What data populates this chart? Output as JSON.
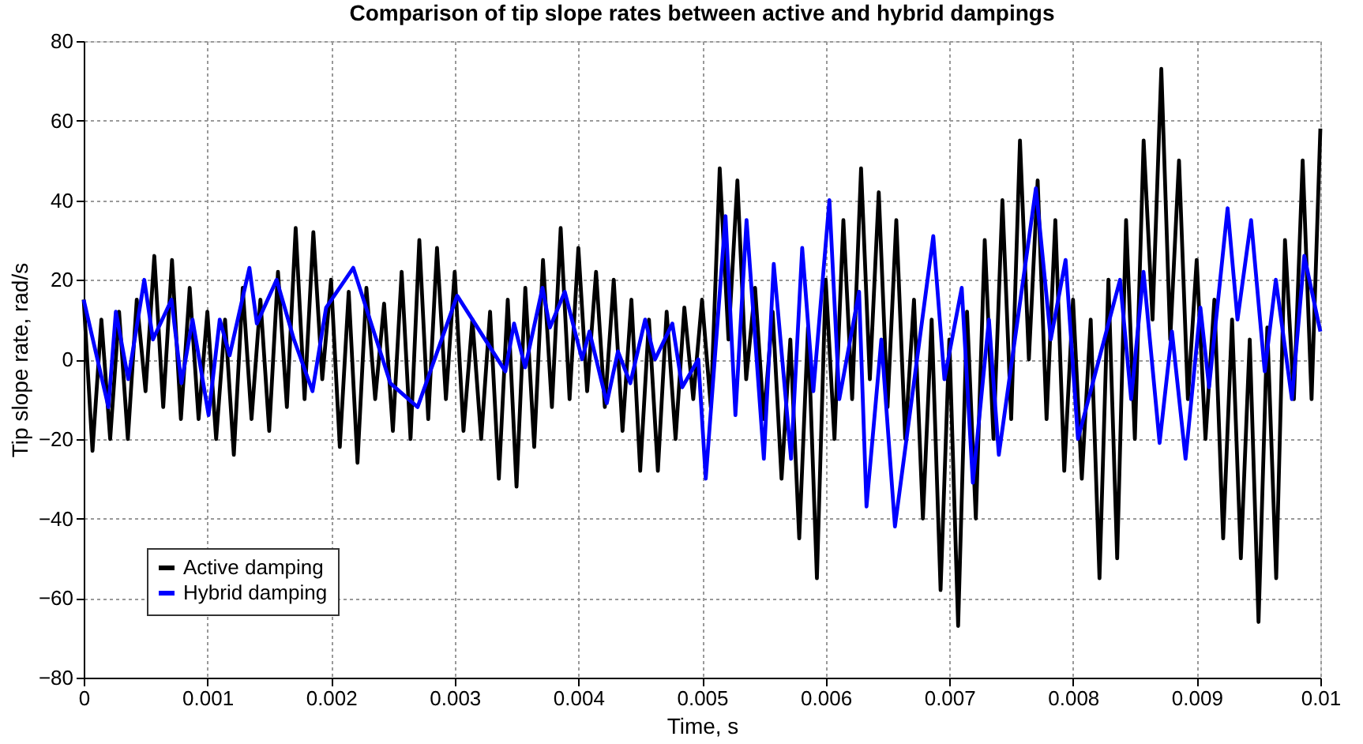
{
  "chart_data": {
    "type": "line",
    "title": "Comparison of tip slope rates between active and hybrid dampings",
    "xlabel": "Time, s",
    "ylabel": "Tip slope rate, rad/s",
    "xlim": [
      0,
      0.01
    ],
    "xticks": [
      0,
      0.001,
      0.002,
      0.003,
      0.004,
      0.005,
      0.006,
      0.007,
      0.008,
      0.009,
      0.01
    ],
    "ylim": [
      -80,
      80
    ],
    "yticks": [
      -80,
      -60,
      -40,
      -20,
      0,
      20,
      40,
      60,
      80
    ],
    "grid": true,
    "legend": "bottom left",
    "line_style": "solid",
    "marker": "none",
    "series": [
      {
        "name": "Active damping",
        "color": "#000000",
        "x": [
          0,
          7.1e-05,
          0.000143,
          0.000214,
          0.000286,
          0.000357,
          0.000429,
          0.0005,
          0.000571,
          0.000643,
          0.000714,
          0.000786,
          0.000857,
          0.000929,
          0.001,
          0.001071,
          0.001143,
          0.001214,
          0.001286,
          0.001357,
          0.001429,
          0.0015,
          0.001571,
          0.001643,
          0.001714,
          0.001786,
          0.001857,
          0.001929,
          0.002,
          0.002071,
          0.002143,
          0.002214,
          0.002286,
          0.002357,
          0.002429,
          0.0025,
          0.002571,
          0.002643,
          0.002714,
          0.002786,
          0.002857,
          0.002929,
          0.003,
          0.003071,
          0.003143,
          0.003214,
          0.003286,
          0.003357,
          0.003429,
          0.0035,
          0.003571,
          0.003643,
          0.003714,
          0.003786,
          0.003857,
          0.003929,
          0.004,
          0.004071,
          0.004143,
          0.004214,
          0.004286,
          0.004357,
          0.004429,
          0.0045,
          0.004571,
          0.004643,
          0.004714,
          0.004786,
          0.004857,
          0.004929,
          0.005,
          0.005071,
          0.005143,
          0.005214,
          0.005286,
          0.005357,
          0.005429,
          0.0055,
          0.005571,
          0.005643,
          0.005714,
          0.005786,
          0.005857,
          0.005929,
          0.006,
          0.006071,
          0.006143,
          0.006214,
          0.006286,
          0.006357,
          0.006429,
          0.0065,
          0.006571,
          0.006643,
          0.006714,
          0.006786,
          0.006857,
          0.006929,
          0.007,
          0.007071,
          0.007143,
          0.007214,
          0.007286,
          0.007357,
          0.007429,
          0.0075,
          0.007571,
          0.007643,
          0.007714,
          0.007786,
          0.007857,
          0.007929,
          0.008,
          0.008071,
          0.008143,
          0.008214,
          0.008286,
          0.008357,
          0.008429,
          0.0085,
          0.008571,
          0.008643,
          0.008714,
          0.008786,
          0.008857,
          0.008929,
          0.009,
          0.009071,
          0.009143,
          0.009214,
          0.009286,
          0.009357,
          0.009429,
          0.0095,
          0.009571,
          0.009643,
          0.009714,
          0.009786,
          0.009857,
          0.009929,
          0.01
        ],
        "values": [
          15,
          -23,
          10,
          -20,
          12,
          -20,
          15,
          -8,
          26,
          -12,
          25,
          -15,
          18,
          -15,
          12,
          -20,
          10,
          -24,
          18,
          -15,
          15,
          -18,
          22,
          -12,
          33,
          -10,
          32,
          -5,
          20,
          -22,
          17,
          -26,
          18,
          -10,
          14,
          -18,
          22,
          -20,
          30,
          -15,
          28,
          -10,
          22,
          -18,
          10,
          -20,
          12,
          -30,
          15,
          -32,
          18,
          -22,
          25,
          -12,
          33,
          -10,
          28,
          -8,
          22,
          -12,
          20,
          -18,
          15,
          -28,
          10,
          -28,
          12,
          -20,
          13,
          -10,
          15,
          -12,
          48,
          5,
          45,
          -5,
          18,
          -15,
          12,
          -30,
          5,
          -45,
          8,
          -55,
          20,
          -20,
          35,
          -10,
          48,
          -5,
          42,
          -12,
          35,
          -20,
          15,
          -40,
          10,
          -58,
          5,
          -67,
          12,
          -40,
          30,
          -20,
          40,
          -15,
          55,
          0,
          45,
          -15,
          35,
          -28,
          15,
          -30,
          10,
          -55,
          20,
          -50,
          35,
          -20,
          55,
          10,
          73,
          5,
          50,
          -10,
          25,
          -20,
          15,
          -45,
          10,
          -50,
          5,
          -66,
          8,
          -55,
          30,
          -10,
          50,
          -10,
          58
        ]
      },
      {
        "name": "Hybrid damping",
        "color": "#0000ff",
        "x": [
          0,
          0.0002,
          0.00026,
          0.00036,
          0.00049,
          0.00056,
          0.00071,
          0.00079,
          0.00088,
          0.00101,
          0.0011,
          0.00118,
          0.00134,
          0.0014,
          0.00156,
          0.0017,
          0.00185,
          0.00196,
          0.00218,
          0.00248,
          0.0027,
          0.00302,
          0.00341,
          0.00348,
          0.00357,
          0.00371,
          0.00377,
          0.00389,
          0.00403,
          0.00409,
          0.00423,
          0.00432,
          0.00442,
          0.00454,
          0.00462,
          0.00476,
          0.00484,
          0.00497,
          0.00503,
          0.00519,
          0.00527,
          0.00536,
          0.0055,
          0.00558,
          0.00572,
          0.00581,
          0.0059,
          0.00603,
          0.00611,
          0.00627,
          0.00633,
          0.00645,
          0.00656,
          0.00687,
          0.00696,
          0.0071,
          0.00719,
          0.00732,
          0.0074,
          0.0077,
          0.00782,
          0.00794,
          0.00804,
          0.00838,
          0.00847,
          0.00857,
          0.0087,
          0.0088,
          0.00891,
          0.00903,
          0.0091,
          0.00925,
          0.00933,
          0.00944,
          0.00955,
          0.00964,
          0.00977,
          0.00987,
          0.01
        ],
        "values": [
          15,
          -12,
          12,
          -5,
          20,
          5,
          15,
          -6,
          10,
          -14,
          10,
          1,
          23,
          9,
          20,
          5,
          -8,
          13,
          23,
          -6,
          -12,
          16,
          -3,
          9,
          -2,
          18,
          8,
          17,
          0,
          7,
          -11,
          2,
          -6,
          10,
          0,
          9,
          -7,
          0,
          -30,
          36,
          -14,
          35,
          -25,
          24,
          -25,
          28,
          -8,
          40,
          -10,
          17,
          -37,
          5,
          -42,
          31,
          -5,
          18,
          -31,
          10,
          -24,
          43,
          5,
          25,
          -20,
          20,
          -10,
          22,
          -21,
          7,
          -25,
          13,
          -7,
          38,
          10,
          35,
          -3,
          20,
          -10,
          26,
          7
        ]
      }
    ]
  }
}
